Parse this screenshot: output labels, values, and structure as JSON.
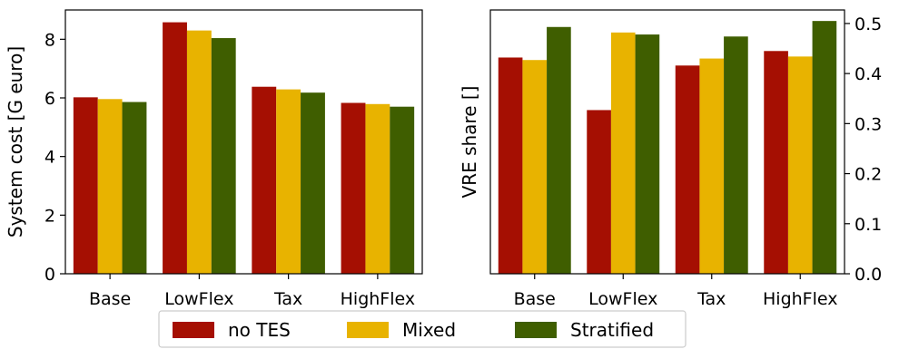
{
  "chart_data": [
    {
      "type": "bar",
      "categories": [
        "Base",
        "LowFlex",
        "Tax",
        "HighFlex"
      ],
      "series": [
        {
          "name": "no TES",
          "values": [
            6.02,
            8.58,
            6.38,
            5.83
          ]
        },
        {
          "name": "Mixed",
          "values": [
            5.96,
            8.3,
            6.29,
            5.79
          ]
        },
        {
          "name": "Stratified",
          "values": [
            5.86,
            8.04,
            6.18,
            5.7
          ]
        }
      ],
      "ylabel": "System cost [G euro]",
      "xlabel": "",
      "ylim": [
        0,
        9.0
      ],
      "yticks": [
        "0",
        "2",
        "4",
        "6",
        "8"
      ],
      "y_axis_side": "left",
      "grid": false
    },
    {
      "type": "bar",
      "categories": [
        "Base",
        "LowFlex",
        "Tax",
        "HighFlex"
      ],
      "series": [
        {
          "name": "no TES",
          "values": [
            0.432,
            0.327,
            0.416,
            0.445
          ]
        },
        {
          "name": "Mixed",
          "values": [
            0.427,
            0.482,
            0.43,
            0.434
          ]
        },
        {
          "name": "Stratified",
          "values": [
            0.493,
            0.478,
            0.474,
            0.505
          ]
        }
      ],
      "ylabel": "VRE share []",
      "xlabel": "",
      "ylim": [
        0,
        0.527
      ],
      "yticks": [
        "0.0",
        "0.1",
        "0.2",
        "0.3",
        "0.4",
        "0.5"
      ],
      "y_axis_side": "right",
      "grid": false
    }
  ],
  "legend": {
    "placement": "bottom-center",
    "entries": [
      "no TES",
      "Mixed",
      "Stratified"
    ]
  },
  "colors": {
    "no TES": "#a50f02",
    "Mixed": "#e8b300",
    "Stratified": "#3f5e00"
  }
}
